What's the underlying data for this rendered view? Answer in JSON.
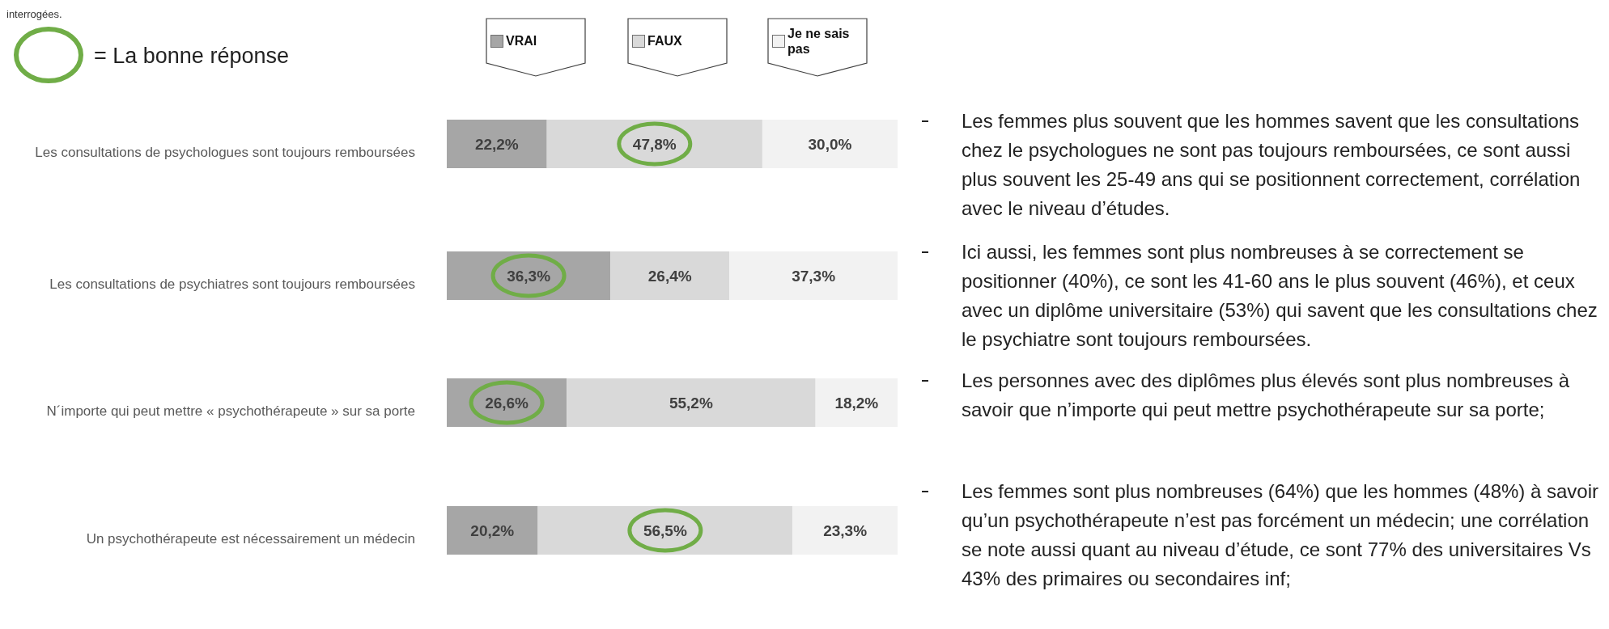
{
  "chart_data": {
    "type": "bar",
    "orientation": "horizontal",
    "stacked": true,
    "legend": "top",
    "categories": [
      "Les consultations de psychologues sont toujours remboursées",
      "Les consultations de psychiatres sont toujours remboursées",
      "N´importe qui peut mettre « psychothérapeute » sur sa porte",
      "Un psychothérapeute est nécessairement un médecin"
    ],
    "xlim": [
      0,
      100
    ],
    "tick_labels": "y",
    "series": [
      {
        "name": "VRAI",
        "color": "#a6a6a6",
        "values": [
          22.2,
          36.3,
          26.6,
          20.2
        ],
        "value_labels": [
          "22,2%",
          "36,3%",
          "26,6%",
          "20,2%"
        ]
      },
      {
        "name": "FAUX",
        "color": "#d9d9d9",
        "values": [
          47.8,
          26.4,
          55.2,
          56.5
        ],
        "value_labels": [
          "47,8%",
          "26,4%",
          "55,2%",
          "56,5%"
        ]
      },
      {
        "name": "Je ne sais pas",
        "color": "#f2f2f2",
        "values": [
          30.0,
          37.3,
          18.2,
          23.3
        ],
        "value_labels": [
          "30,0%",
          "37,3%",
          "18,2%",
          "23,3%"
        ]
      }
    ],
    "annotations": [
      "interrogées.",
      "= La bonne réponse",
      "Les femmes plus souvent que les hommes savent que les consultations chez le psychologues ne sont pas toujours remboursées, ce sont aussi plus souvent les 25-49 ans qui se positionnent correctement, corrélation avec le niveau d’études.",
      "Ici aussi, les femmes sont plus nombreuses à se correctement se positionner (40%), ce sont les 41-60 ans le plus souvent (46%), et ceux avec un diplôme universitaire (53%) qui savent que les consultations chez le psychiatre sont toujours remboursées.",
      "Les personnes avec des diplômes plus élevés sont plus nombreuses à savoir que n’importe qui peut mettre psychothérapeute sur sa porte;",
      "Les femmes sont plus nombreuses (64%) que les hommes (48%) à savoir qu’un psychothérapeute n’est pas forcément un médecin; une corrélation se note aussi quant au niveau d’étude, ce sont 77% des universitaires Vs 43% des primaires ou secondaires inf;"
    ]
  }
}
